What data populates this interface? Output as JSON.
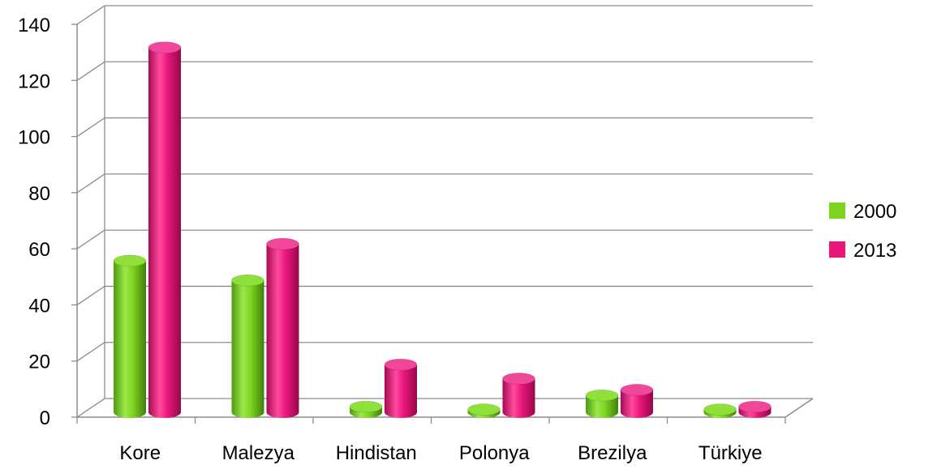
{
  "chart_data": {
    "type": "bar",
    "style": "3d-cylinder",
    "categories": [
      "Kore",
      "Malezya",
      "Hindistan",
      "Polonya",
      "Brezilya",
      "Türkiye"
    ],
    "series": [
      {
        "name": "2000",
        "color": "#7ed321",
        "values": [
          54,
          47,
          2,
          1,
          6,
          1
        ]
      },
      {
        "name": "2013",
        "color": "#e8157a",
        "values": [
          130,
          60,
          17,
          12,
          8,
          2
        ]
      }
    ],
    "ylim": [
      0,
      140
    ],
    "yticks": [
      0,
      20,
      40,
      60,
      80,
      100,
      120,
      140
    ],
    "grid": true,
    "legend_position": "right"
  }
}
